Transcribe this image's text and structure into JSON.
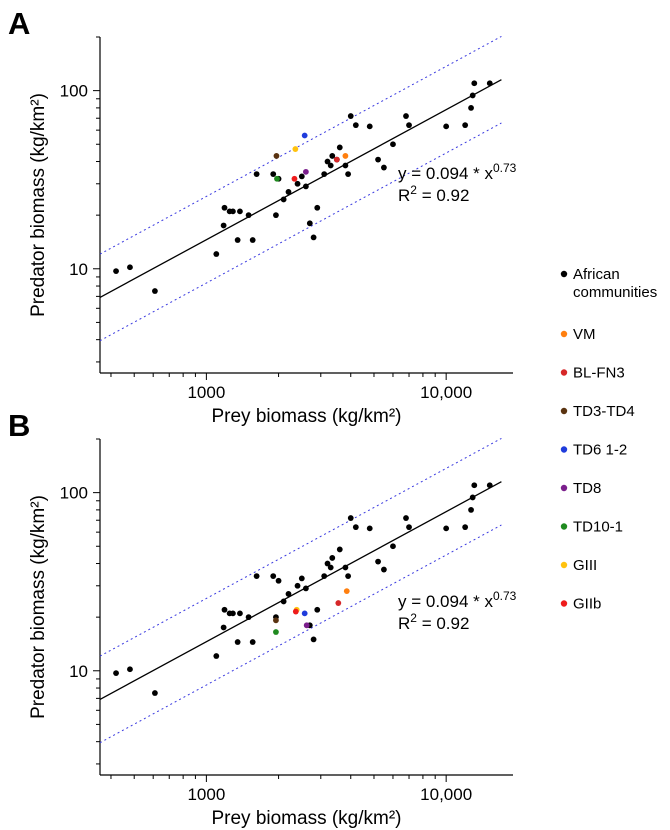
{
  "colors": {
    "african": "#000000",
    "VM": "#ff7f0e",
    "BL-FN3": "#d62728",
    "TD3-TD4": "#5a3310",
    "TD6 1-2": "#1f3cdc",
    "TD8": "#7b1f8c",
    "TD10-1": "#1f8a1f",
    "GIII": "#ffc20e",
    "GIIb": "#ee1c1c",
    "fit_line": "#000000",
    "prediction_band": "#3a3ae0"
  },
  "legend": [
    {
      "key": "african",
      "label_lines": [
        "African",
        "communities"
      ],
      "color": "#000000"
    },
    {
      "key": "VM",
      "label_lines": [
        "VM"
      ],
      "color": "#ff7f0e"
    },
    {
      "key": "BL-FN3",
      "label_lines": [
        "BL-FN3"
      ],
      "color": "#d62728"
    },
    {
      "key": "TD3-TD4",
      "label_lines": [
        "TD3-TD4"
      ],
      "color": "#5a3310"
    },
    {
      "key": "TD6 1-2",
      "label_lines": [
        "TD6 1-2"
      ],
      "color": "#1f3cdc"
    },
    {
      "key": "TD8",
      "label_lines": [
        "TD8"
      ],
      "color": "#7b1f8c"
    },
    {
      "key": "TD10-1",
      "label_lines": [
        "TD10-1"
      ],
      "color": "#1f8a1f"
    },
    {
      "key": "GIII",
      "label_lines": [
        "GIII"
      ],
      "color": "#ffc20e"
    },
    {
      "key": "GIIb",
      "label_lines": [
        "GIIb"
      ],
      "color": "#ee1c1c"
    }
  ],
  "chart_data": [
    {
      "type": "scatter",
      "panel": "A",
      "xlabel": "Prey biomass (kg/km²)",
      "ylabel": "Predator biomass (kg/km²)",
      "xscale": "log",
      "yscale": "log",
      "xlim": [
        360,
        19000
      ],
      "ylim": [
        2.6,
        200
      ],
      "xticks": [
        1000,
        10000
      ],
      "xtick_labels": [
        "1000",
        "10,000"
      ],
      "yticks": [
        10,
        100
      ],
      "ytick_labels": [
        "10",
        "100"
      ],
      "grid": false,
      "equation": {
        "prefix": "y = 0.094 * x",
        "exponent": "0.73"
      },
      "r2": {
        "prefix": "R",
        "sup": "2",
        "suffix": " = 0.92"
      },
      "fit": {
        "a": 0.094,
        "b": 0.73,
        "x_range": [
          360,
          17000
        ],
        "band_factor": 1.75
      },
      "series": [
        {
          "name": "African communities",
          "key": "african",
          "points": [
            [
              420,
              9.7
            ],
            [
              480,
              10.2
            ],
            [
              610,
              7.5
            ],
            [
              1100,
              12.1
            ],
            [
              1180,
              17.5
            ],
            [
              1190,
              22
            ],
            [
              1250,
              21
            ],
            [
              1290,
              21
            ],
            [
              1350,
              14.5
            ],
            [
              1380,
              21
            ],
            [
              1500,
              20
            ],
            [
              1560,
              14.5
            ],
            [
              1620,
              34
            ],
            [
              1900,
              34
            ],
            [
              1950,
              20
            ],
            [
              2000,
              32
            ],
            [
              2100,
              24.5
            ],
            [
              2200,
              27
            ],
            [
              2400,
              30
            ],
            [
              2500,
              33
            ],
            [
              2600,
              29
            ],
            [
              2700,
              18
            ],
            [
              2800,
              15
            ],
            [
              2900,
              22
            ],
            [
              3100,
              34
            ],
            [
              3200,
              40
            ],
            [
              3300,
              38
            ],
            [
              3350,
              43
            ],
            [
              3500,
              41
            ],
            [
              3600,
              48
            ],
            [
              3800,
              38
            ],
            [
              3900,
              34
            ],
            [
              4000,
              72
            ],
            [
              4200,
              64
            ],
            [
              4800,
              63
            ],
            [
              5200,
              41
            ],
            [
              5500,
              37
            ],
            [
              6000,
              50
            ],
            [
              6800,
              72
            ],
            [
              7000,
              64
            ],
            [
              10000,
              63
            ],
            [
              12000,
              64
            ],
            [
              12700,
              80
            ],
            [
              12900,
              94
            ],
            [
              13100,
              110
            ],
            [
              15200,
              110
            ]
          ]
        },
        {
          "name": "VM",
          "key": "VM",
          "points": [
            [
              3800,
              43
            ]
          ]
        },
        {
          "name": "BL-FN3",
          "key": "BL-FN3",
          "points": [
            [
              3500,
              41
            ]
          ]
        },
        {
          "name": "TD3-TD4",
          "key": "TD3-TD4",
          "points": [
            [
              1960,
              43
            ]
          ]
        },
        {
          "name": "TD6 1-2",
          "key": "TD6 1-2",
          "points": [
            [
              2570,
              56
            ]
          ]
        },
        {
          "name": "TD8",
          "key": "TD8",
          "points": [
            [
              2600,
              35
            ]
          ]
        },
        {
          "name": "TD10-1",
          "key": "TD10-1",
          "points": [
            [
              1970,
              32
            ]
          ]
        },
        {
          "name": "GIII",
          "key": "GIII",
          "points": [
            [
              2350,
              47
            ]
          ]
        },
        {
          "name": "GIIb",
          "key": "GIIb",
          "points": [
            [
              2330,
              32
            ]
          ]
        }
      ]
    },
    {
      "type": "scatter",
      "panel": "B",
      "xlabel": "Prey biomass (kg/km²)",
      "ylabel": "Predator biomass (kg/km²)",
      "xscale": "log",
      "yscale": "log",
      "xlim": [
        360,
        19000
      ],
      "ylim": [
        2.6,
        200
      ],
      "xticks": [
        1000,
        10000
      ],
      "xtick_labels": [
        "1000",
        "10,000"
      ],
      "yticks": [
        10,
        100
      ],
      "ytick_labels": [
        "10",
        "100"
      ],
      "grid": false,
      "equation": {
        "prefix": "y = 0.094 * x",
        "exponent": "0.73"
      },
      "r2": {
        "prefix": "R",
        "sup": "2",
        "suffix": " = 0.92"
      },
      "fit": {
        "a": 0.094,
        "b": 0.73,
        "x_range": [
          360,
          17000
        ],
        "band_factor": 1.75
      },
      "series": [
        {
          "name": "African communities",
          "key": "african",
          "points": [
            [
              420,
              9.7
            ],
            [
              480,
              10.2
            ],
            [
              610,
              7.5
            ],
            [
              1100,
              12.1
            ],
            [
              1180,
              17.5
            ],
            [
              1190,
              22
            ],
            [
              1250,
              21
            ],
            [
              1290,
              21
            ],
            [
              1350,
              14.5
            ],
            [
              1380,
              21
            ],
            [
              1500,
              20
            ],
            [
              1560,
              14.5
            ],
            [
              1620,
              34
            ],
            [
              1900,
              34
            ],
            [
              1950,
              20
            ],
            [
              2000,
              32
            ],
            [
              2100,
              24.5
            ],
            [
              2200,
              27
            ],
            [
              2400,
              30
            ],
            [
              2500,
              33
            ],
            [
              2600,
              29
            ],
            [
              2700,
              18
            ],
            [
              2800,
              15
            ],
            [
              2900,
              22
            ],
            [
              3100,
              34
            ],
            [
              3200,
              40
            ],
            [
              3300,
              38
            ],
            [
              3350,
              43
            ],
            [
              3600,
              48
            ],
            [
              3800,
              38
            ],
            [
              3900,
              34
            ],
            [
              4000,
              72
            ],
            [
              4200,
              64
            ],
            [
              4800,
              63
            ],
            [
              5200,
              41
            ],
            [
              5500,
              37
            ],
            [
              6000,
              50
            ],
            [
              6800,
              72
            ],
            [
              7000,
              64
            ],
            [
              10000,
              63
            ],
            [
              12000,
              64
            ],
            [
              12700,
              80
            ],
            [
              12900,
              94
            ],
            [
              13100,
              110
            ],
            [
              15200,
              110
            ]
          ]
        },
        {
          "name": "VM",
          "key": "VM",
          "points": [
            [
              3850,
              28
            ]
          ]
        },
        {
          "name": "BL-FN3",
          "key": "BL-FN3",
          "points": [
            [
              3550,
              24
            ]
          ]
        },
        {
          "name": "TD3-TD4",
          "key": "TD3-TD4",
          "points": [
            [
              1950,
              19.2
            ]
          ]
        },
        {
          "name": "TD6 1-2",
          "key": "TD6 1-2",
          "points": [
            [
              2570,
              21
            ]
          ]
        },
        {
          "name": "TD8",
          "key": "TD8",
          "points": [
            [
              2620,
              18
            ]
          ]
        },
        {
          "name": "TD10-1",
          "key": "TD10-1",
          "points": [
            [
              1950,
              16.5
            ]
          ]
        },
        {
          "name": "GIII",
          "key": "GIII",
          "points": [
            [
              2380,
              22
            ]
          ]
        },
        {
          "name": "GIIb",
          "key": "GIIb",
          "points": [
            [
              2360,
              21.5
            ]
          ]
        }
      ]
    }
  ]
}
